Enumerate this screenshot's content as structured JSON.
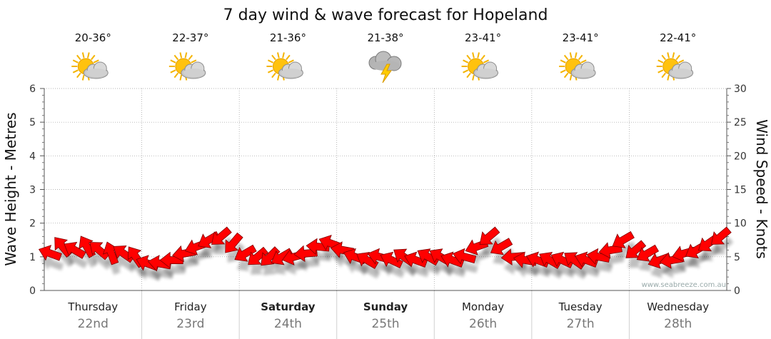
{
  "chart_data": {
    "type": "line",
    "title": "7 day wind & wave forecast for Hopeland",
    "ylabel_left": "Wave Height - Metres",
    "ylabel_right": "Wind Speed - Knots",
    "ylim_left": [
      0,
      6
    ],
    "ylim_right": [
      0,
      30
    ],
    "left_ticks": [
      "0",
      "1",
      "2",
      "3",
      "4",
      "5",
      "6"
    ],
    "right_ticks": [
      "0",
      "5",
      "10",
      "15",
      "20",
      "25",
      "30"
    ],
    "grid": true,
    "days": [
      {
        "name": "Thursday",
        "date": "22nd",
        "temp": "20-36°",
        "icon": "sun-cloud-icon",
        "bold": false
      },
      {
        "name": "Friday",
        "date": "23rd",
        "temp": "22-37°",
        "icon": "sun-cloud-icon",
        "bold": false
      },
      {
        "name": "Saturday",
        "date": "24th",
        "temp": "21-36°",
        "icon": "sun-cloud-icon",
        "bold": true
      },
      {
        "name": "Sunday",
        "date": "25th",
        "temp": "21-38°",
        "icon": "storm-icon",
        "bold": true
      },
      {
        "name": "Monday",
        "date": "26th",
        "temp": "23-41°",
        "icon": "sun-cloud-icon",
        "bold": false
      },
      {
        "name": "Tuesday",
        "date": "27th",
        "temp": "23-41°",
        "icon": "sun-cloud-icon",
        "bold": false
      },
      {
        "name": "Wednesday",
        "date": "28th",
        "temp": "22-41°",
        "icon": "sun-cloud-icon",
        "bold": false
      }
    ],
    "series": [
      {
        "name": "Wind Speed - Knots",
        "color": "#ff0000",
        "x_hours_step": 3,
        "values": [
          5.5,
          6.5,
          6,
          6.5,
          6,
          5.5,
          5.5,
          5,
          4,
          4,
          4.5,
          5.5,
          6.5,
          7.5,
          8,
          7,
          5.5,
          5,
          5,
          5,
          5,
          5.5,
          6.5,
          7,
          6,
          5,
          4.5,
          5,
          4.5,
          5,
          4.5,
          5,
          5,
          4.5,
          5,
          6.5,
          8,
          6.5,
          5,
          4.5,
          4.5,
          4.5,
          4.5,
          4.5,
          4.5,
          5,
          6,
          7.5,
          6,
          5.5,
          4.5,
          4.5,
          5.5,
          6,
          7,
          8
        ],
        "direction_deg": [
          200,
          230,
          210,
          240,
          220,
          250,
          215,
          235,
          200,
          190,
          180,
          170,
          160,
          150,
          140,
          130,
          150,
          140,
          135,
          150,
          165,
          175,
          185,
          200,
          190,
          200,
          210,
          195,
          205,
          215,
          200,
          210,
          210,
          200,
          195,
          160,
          140,
          150,
          175,
          190,
          200,
          210,
          205,
          215,
          200,
          190,
          170,
          150,
          140,
          150,
          160,
          170,
          165,
          150,
          145,
          140
        ]
      }
    ],
    "watermark": "www.seabreeze.com.au"
  }
}
